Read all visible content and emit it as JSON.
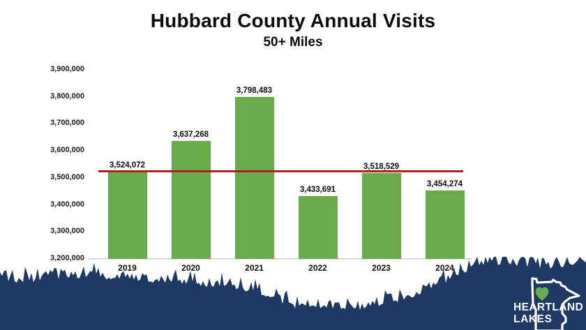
{
  "header": {
    "title": "Hubbard County Annual Visits",
    "subtitle": "50+ Miles"
  },
  "chart_data": {
    "type": "bar",
    "title": "Hubbard County Annual Visits",
    "subtitle": "50+ Miles",
    "categories": [
      "2019",
      "2020",
      "2021",
      "2022",
      "2023",
      "2024"
    ],
    "values": [
      3524072,
      3637268,
      3798483,
      3433691,
      3518529,
      3454274
    ],
    "value_labels": [
      "3,524,072",
      "3,637,268",
      "3,798,483",
      "3,433,691",
      "3,518,529",
      "3,454,274"
    ],
    "xlabel": "",
    "ylabel": "",
    "ylim": [
      3200000,
      3900000
    ],
    "ytick_step": 100000,
    "ytick_labels": [
      "3,200,000",
      "3,300,000",
      "3,400,000",
      "3,500,000",
      "3,600,000",
      "3,700,000",
      "3,800,000",
      "3,900,000"
    ],
    "grid": false,
    "legend": false,
    "bar_color": "#6aac4b",
    "reference_line": {
      "value": 3524072,
      "color": "#b02020"
    }
  },
  "logo": {
    "line1": "HEARTLAND",
    "line2": "LAKES",
    "heart_icon": "green-heart",
    "state_icon": "minnesota-outline"
  },
  "colors": {
    "bar_green": "#6aac4b",
    "reference_red": "#b02020",
    "silhouette_navy": "#1e3a64",
    "axis_gray": "#d9d9d9",
    "text_black": "#0b0b0b",
    "logo_white": "#ffffff"
  }
}
